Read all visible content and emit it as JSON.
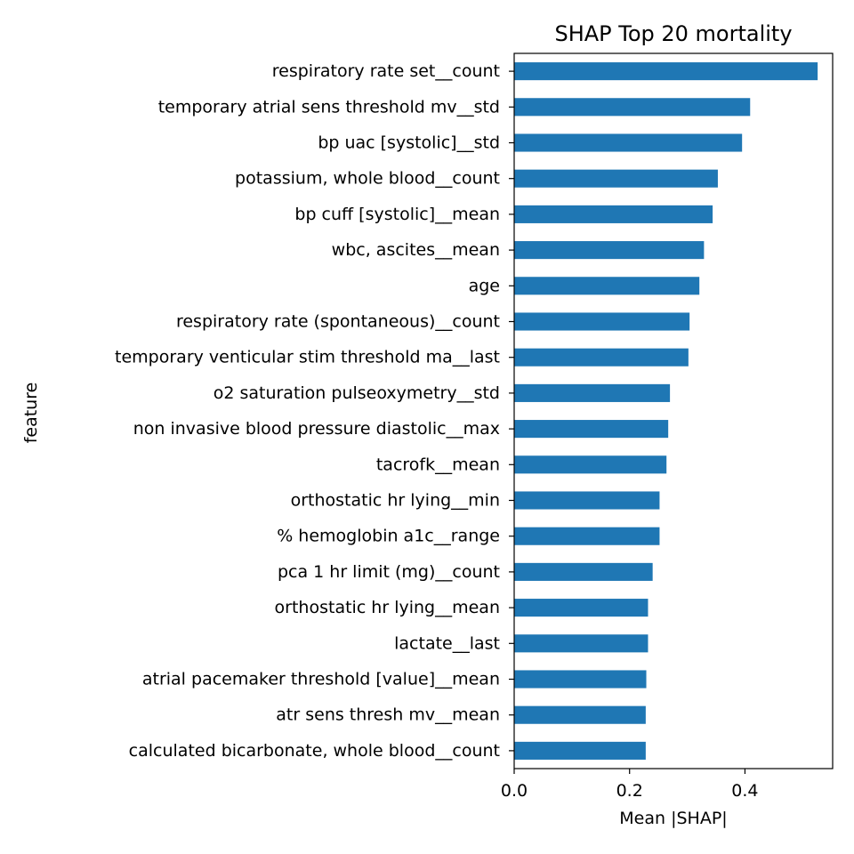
{
  "chart_data": {
    "type": "bar",
    "orientation": "horizontal",
    "title": "SHAP Top 20 mortality",
    "xlabel": "Mean |SHAP|",
    "ylabel": "feature",
    "xlim": [
      0,
      0.552
    ],
    "xticks": [
      0.0,
      0.2,
      0.4
    ],
    "xtick_labels": [
      "0.0",
      "0.2",
      "0.4"
    ],
    "grid": false,
    "legend": "none",
    "bar_color": "#1f77b4",
    "categories": [
      "respiratory rate set__count",
      "temporary atrial sens threshold mv__std",
      "bp uac [systolic]__std",
      "potassium, whole blood__count",
      "bp cuff [systolic]__mean",
      "wbc, ascites__mean",
      "age",
      "respiratory rate (spontaneous)__count",
      "temporary venticular stim threshold ma__last",
      "o2 saturation pulseoxymetry__std",
      "non invasive blood pressure diastolic__max",
      "tacrofk__mean",
      "orthostatic hr lying__min",
      "% hemoglobin a1c__range",
      "pca 1 hr limit (mg)__count",
      "orthostatic hr lying__mean",
      "lactate__last",
      "atrial pacemaker threshold [value]__mean",
      "atr sens thresh mv__mean",
      "calculated bicarbonate, whole blood__count"
    ],
    "values": [
      0.526,
      0.409,
      0.395,
      0.353,
      0.344,
      0.329,
      0.321,
      0.304,
      0.302,
      0.27,
      0.267,
      0.264,
      0.252,
      0.252,
      0.24,
      0.232,
      0.232,
      0.229,
      0.228,
      0.228
    ]
  }
}
